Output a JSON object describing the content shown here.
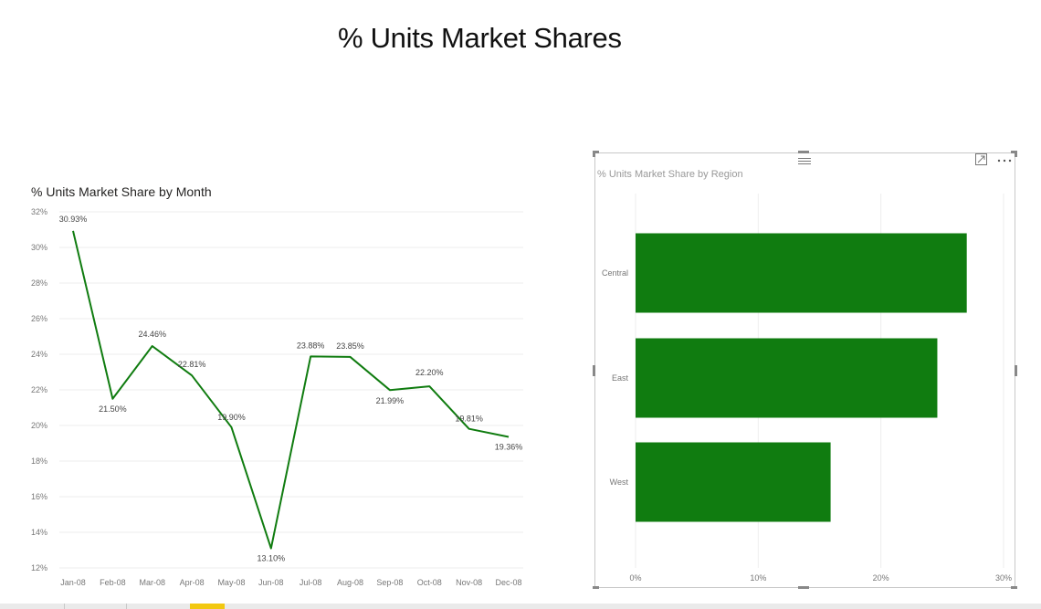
{
  "page": {
    "title": "% Units Market Shares"
  },
  "colors": {
    "series": "#107c10",
    "grid": "#eeeeee",
    "axis_text": "#777777"
  },
  "icons": {
    "focus": "focus-mode-icon",
    "more": "more-options-icon",
    "drag": "drag-handle-icon"
  },
  "chart_data": [
    {
      "type": "line",
      "title": "% Units Market Share by Month",
      "categories": [
        "Jan-08",
        "Feb-08",
        "Mar-08",
        "Apr-08",
        "May-08",
        "Jun-08",
        "Jul-08",
        "Aug-08",
        "Sep-08",
        "Oct-08",
        "Nov-08",
        "Dec-08"
      ],
      "values": [
        30.93,
        21.5,
        24.46,
        22.81,
        19.9,
        13.1,
        23.88,
        23.85,
        21.99,
        22.2,
        19.81,
        19.36
      ],
      "data_labels": [
        "30.93%",
        "21.50%",
        "24.46%",
        "22.81%",
        "19.90%",
        "13.10%",
        "23.88%",
        "23.85%",
        "21.99%",
        "22.20%",
        "19.81%",
        "19.36%"
      ],
      "ylim": [
        12,
        32
      ],
      "yticks": [
        "32%",
        "30%",
        "28%",
        "26%",
        "24%",
        "22%",
        "20%",
        "18%",
        "16%",
        "14%",
        "12%"
      ],
      "grid": true
    },
    {
      "type": "bar",
      "orientation": "horizontal",
      "title": "% Units Market Share by Region",
      "categories": [
        "Central",
        "East",
        "West"
      ],
      "values": [
        27.0,
        24.6,
        15.9
      ],
      "xlim": [
        0,
        30
      ],
      "xticks": [
        "0%",
        "10%",
        "20%",
        "30%"
      ],
      "grid": true
    }
  ]
}
